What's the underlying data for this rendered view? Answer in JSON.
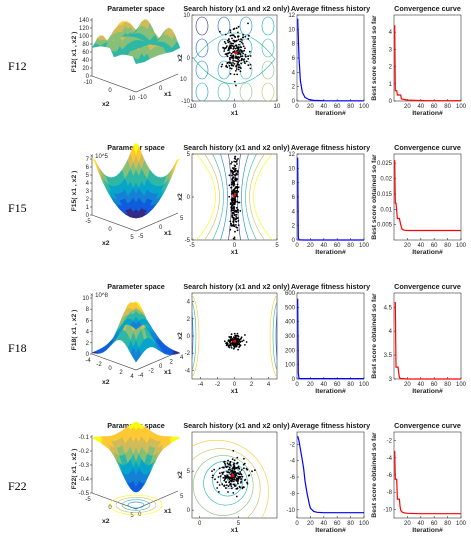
{
  "panel_titles": {
    "param": "Parameter space",
    "search": "Search history (x1 and x2 only)",
    "avg": "Average fitness history",
    "conv": "Convergence curve"
  },
  "labels": {
    "iteration": "Iteration#",
    "best_score": "Best score obtained so far",
    "x1": "x1",
    "x2": "x2"
  },
  "colors": {
    "avg_line": "#0000ff",
    "conv_line": "#ff0000",
    "search_start": "#ff0000"
  },
  "chart_data": [
    {
      "function": "F12",
      "param_space": {
        "type": "surface",
        "zlabel": "F12( x1 , x2 )",
        "xlabel": "x1",
        "ylabel": "x2",
        "zticks": [
          "0",
          "20",
          "40",
          "60",
          "80",
          "100",
          "120",
          "140"
        ],
        "xticks": [
          "-10",
          "0",
          "10"
        ],
        "yticks": [
          "-10",
          "0",
          "10"
        ]
      },
      "search": {
        "type": "scatter",
        "xlabel": "x1",
        "ylabel": "x2",
        "xlim": [
          -10,
          10
        ],
        "ylim": [
          -10,
          10
        ],
        "xticks": [
          "-10",
          "0",
          "10"
        ],
        "yticks": [
          "-10",
          "0",
          "10"
        ],
        "cluster": {
          "cx": 0.3,
          "cy": 1.2,
          "sx": 1.6,
          "sy": 2.4,
          "n": 220
        }
      },
      "avg": {
        "type": "line",
        "xlabel": "Iteration#",
        "x": [
          1,
          3,
          5,
          8,
          12,
          18,
          25,
          40,
          60,
          80,
          100
        ],
        "y": [
          11.5,
          6.0,
          2.8,
          1.2,
          0.5,
          0.2,
          0.08,
          0.04,
          0.03,
          0.03,
          0.03
        ],
        "xlim": [
          0,
          100
        ],
        "ylim": [
          0,
          12
        ],
        "xticks": [
          "0",
          "20",
          "40",
          "60",
          "80",
          "100"
        ],
        "yticks": [
          "0",
          "2",
          "4",
          "6",
          "8",
          "10",
          "12"
        ]
      },
      "conv": {
        "type": "line",
        "ylabel": "Best score obtained so far",
        "xlabel": "Iteration#",
        "x": [
          1,
          2,
          4,
          5,
          10,
          11,
          20,
          50,
          100
        ],
        "y": [
          4.4,
          0.6,
          0.6,
          0.35,
          0.35,
          0.12,
          0.05,
          0.02,
          0.02
        ],
        "xlim": [
          0,
          100
        ],
        "ylim": [
          0,
          5
        ],
        "xticks": [
          "20",
          "40",
          "60",
          "80",
          "100"
        ],
        "yticks": [
          "0",
          "1",
          "2",
          "3",
          "4"
        ]
      }
    },
    {
      "function": "F15",
      "param_space": {
        "type": "surface",
        "zlabel": "F15( x1 , x2 )",
        "xlabel": "x1",
        "ylabel": "x2",
        "zmult": "× 10^5",
        "zticks": [
          "0",
          "1",
          "2",
          "3",
          "4",
          "5",
          "6",
          "7"
        ],
        "xticks": [
          "-5",
          "0",
          "5"
        ],
        "yticks": [
          "-5",
          "0",
          "5"
        ]
      },
      "search": {
        "type": "scatter",
        "xlabel": "x1",
        "ylabel": "x2",
        "xlim": [
          -5,
          5
        ],
        "ylim": [
          -5,
          5
        ],
        "xticks": [
          "-5",
          "0",
          "5"
        ],
        "yticks": [
          "-5",
          "0",
          "5"
        ],
        "cluster": {
          "cx": 0.0,
          "cy": 0.2,
          "sx": 0.25,
          "sy": 2.5,
          "n": 240
        }
      },
      "avg": {
        "type": "line",
        "xlabel": "Iteration#",
        "x": [
          1,
          2,
          3,
          5,
          10,
          20,
          50,
          100
        ],
        "y": [
          11.5,
          0.4,
          0.02,
          0.01,
          0.005,
          0.005,
          0.005,
          0.005
        ],
        "xlim": [
          0,
          100
        ],
        "ylim": [
          0,
          12
        ],
        "xticks": [
          "0",
          "20",
          "40",
          "60",
          "80",
          "100"
        ],
        "yticks": [
          "0",
          "2",
          "4",
          "6",
          "8",
          "10",
          "12"
        ]
      },
      "conv": {
        "type": "line",
        "ylabel": "Best score obtained so far",
        "xlabel": "Iteration#",
        "x": [
          1,
          2,
          3,
          5,
          8,
          10,
          12,
          15,
          20,
          30,
          40,
          60,
          100
        ],
        "y": [
          0.026,
          0.012,
          0.012,
          0.007,
          0.007,
          0.005,
          0.0035,
          0.0032,
          0.0031,
          0.0031,
          0.0031,
          0.0031,
          0.0031
        ],
        "xlim": [
          0,
          100
        ],
        "ylim": [
          0,
          0.028
        ],
        "xticks": [
          "20",
          "40",
          "60",
          "80",
          "100"
        ],
        "yticks": [
          "0.005",
          "0.01",
          "0.015",
          "0.02",
          "0.025"
        ]
      }
    },
    {
      "function": "F18",
      "param_space": {
        "type": "surface",
        "zlabel": "F18( x1 , x2 )",
        "xlabel": "x1",
        "ylabel": "x2",
        "zmult": "× 10^8",
        "zticks": [
          "0",
          "2",
          "4",
          "6",
          "8",
          "10"
        ],
        "xticks": [
          "-4",
          "-2",
          "0",
          "2",
          "4"
        ],
        "yticks": [
          "-4",
          "-2",
          "0",
          "2",
          "4"
        ]
      },
      "search": {
        "type": "scatter",
        "xlabel": "x1",
        "ylabel": "x2",
        "xlim": [
          -5,
          5
        ],
        "ylim": [
          -5,
          5
        ],
        "xticks": [
          "-4",
          "-2",
          "0",
          "2",
          "4"
        ],
        "yticks": [
          "-4",
          "-2",
          "0",
          "2",
          "4"
        ],
        "cluster": {
          "cx": 0.0,
          "cy": -0.6,
          "sx": 0.45,
          "sy": 0.45,
          "n": 140
        }
      },
      "avg": {
        "type": "line",
        "xlabel": "Iteration#",
        "x": [
          1,
          2,
          3,
          5,
          10,
          20,
          50,
          100
        ],
        "y": [
          560,
          40,
          5,
          3,
          3,
          3,
          3,
          3
        ],
        "xlim": [
          0,
          100
        ],
        "ylim": [
          0,
          600
        ],
        "xticks": [
          "0",
          "20",
          "40",
          "60",
          "80",
          "100"
        ],
        "yticks": [
          "0",
          "100",
          "200",
          "300",
          "400",
          "500",
          "600"
        ]
      },
      "conv": {
        "type": "line",
        "ylabel": "Best score obtained so far",
        "xlabel": "Iteration#",
        "x": [
          1,
          2,
          3,
          6,
          8,
          10,
          20,
          50,
          100
        ],
        "y": [
          4.6,
          4.6,
          3.25,
          3.25,
          3.03,
          3.01,
          3.0,
          3.0,
          3.0
        ],
        "xlim": [
          0,
          100
        ],
        "ylim": [
          3,
          4.8
        ],
        "xticks": [
          "20",
          "40",
          "60",
          "80",
          "100"
        ],
        "yticks": [
          "3",
          "3.5",
          "4",
          "4.5"
        ]
      }
    },
    {
      "function": "F22",
      "param_space": {
        "type": "surface",
        "zlabel": "F22( x1 , x2 )",
        "xlabel": "x1",
        "ylabel": "x2",
        "zticks": [
          "-0.5",
          "-0.4",
          "-0.3",
          "-0.2",
          "-0.1"
        ],
        "xticks": [
          "0",
          "5"
        ],
        "yticks": [
          "-5",
          "0",
          "5"
        ]
      },
      "search": {
        "type": "scatter",
        "xlabel": "x1",
        "ylabel": "x2",
        "xlim": [
          -1,
          10
        ],
        "ylim": [
          -1,
          10
        ],
        "xticks": [
          "0",
          "5"
        ],
        "yticks": [
          "0",
          "5"
        ],
        "cluster": {
          "cx": 4.3,
          "cy": 4.4,
          "sx": 1.0,
          "sy": 1.0,
          "n": 200
        }
      },
      "avg": {
        "type": "line",
        "xlabel": "Iteration#",
        "x": [
          1,
          3,
          5,
          8,
          10,
          12,
          15,
          18,
          20,
          25,
          30,
          40,
          60,
          100
        ],
        "y": [
          -1.0,
          -1.6,
          -2.6,
          -4.0,
          -5.0,
          -6.5,
          -8.0,
          -9.2,
          -9.8,
          -10.2,
          -10.3,
          -10.35,
          -10.35,
          -10.35
        ],
        "xlim": [
          0,
          100
        ],
        "ylim": [
          -11,
          -0.5
        ],
        "xticks": [
          "0",
          "20",
          "40",
          "60",
          "80",
          "100"
        ],
        "yticks": [
          "-10",
          "-8",
          "-6",
          "-4",
          "-2"
        ]
      },
      "conv": {
        "type": "line",
        "ylabel": "Best score obtained so far",
        "xlabel": "Iteration#",
        "x": [
          1,
          2,
          4,
          5,
          8,
          9,
          10,
          12,
          15,
          20,
          40,
          100
        ],
        "y": [
          -3.2,
          -6.5,
          -6.5,
          -8.8,
          -8.8,
          -9.6,
          -10.1,
          -10.3,
          -10.4,
          -10.45,
          -10.5,
          -10.5
        ],
        "xlim": [
          0,
          100
        ],
        "ylim": [
          -11,
          -1
        ],
        "xticks": [
          "20",
          "40",
          "60",
          "80",
          "100"
        ],
        "yticks": [
          "-10",
          "-8",
          "-6",
          "-4",
          "-2"
        ]
      }
    }
  ]
}
